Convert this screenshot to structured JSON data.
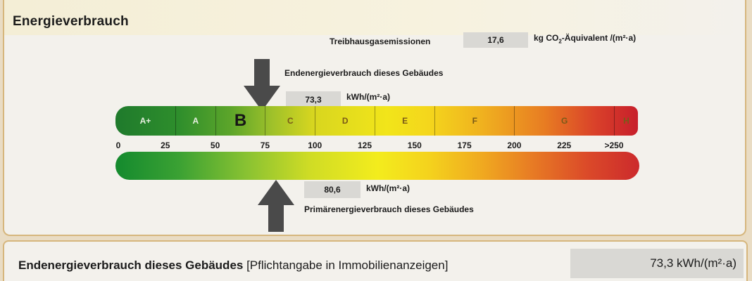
{
  "section_title": "Energieverbrauch",
  "emissions": {
    "label": "Treibhausgasemissionen",
    "value": "17,6",
    "unit_prefix": "kg CO",
    "unit_sub": "2",
    "unit_suffix": "-Äquivalent /(m²·a)"
  },
  "final_energy": {
    "label": "Endenergieverbrauch dieses Gebäudes",
    "value": "73,3",
    "unit": "kWh/(m²·a)",
    "scale_value": 73.3
  },
  "primary_energy": {
    "label": "Primärenergieverbrauch dieses Gebäudes",
    "value": "80,6",
    "unit": "kWh/(m²·a)",
    "scale_value": 80.6
  },
  "scale": {
    "classes": [
      {
        "label": "A+",
        "from": 0,
        "to": 30
      },
      {
        "label": "A",
        "from": 30,
        "to": 50
      },
      {
        "label": "B",
        "from": 50,
        "to": 75
      },
      {
        "label": "C",
        "from": 75,
        "to": 100
      },
      {
        "label": "D",
        "from": 100,
        "to": 130
      },
      {
        "label": "E",
        "from": 130,
        "to": 160
      },
      {
        "label": "F",
        "from": 160,
        "to": 200
      },
      {
        "label": "G",
        "from": 200,
        "to": 250
      },
      {
        "label": "H",
        "from": 250,
        "to": 262
      }
    ],
    "highlighted_class": "B",
    "ticks": [
      {
        "value": 0,
        "label": "0"
      },
      {
        "value": 25,
        "label": "25"
      },
      {
        "value": 50,
        "label": "50"
      },
      {
        "value": 75,
        "label": "75"
      },
      {
        "value": 100,
        "label": "100"
      },
      {
        "value": 125,
        "label": "125"
      },
      {
        "value": 150,
        "label": "150"
      },
      {
        "value": 175,
        "label": "175"
      },
      {
        "value": 200,
        "label": "200"
      },
      {
        "value": 225,
        "label": "225"
      },
      {
        "value": 250,
        "label": ">250"
      }
    ],
    "max": 262
  },
  "footer": {
    "label_bold": "Endenergieverbrauch dieses Gebäudes",
    "label_rest": " [Pflichtangabe in Immobilienanzeigen]",
    "value": "73,3 kWh/(m²·a)"
  }
}
